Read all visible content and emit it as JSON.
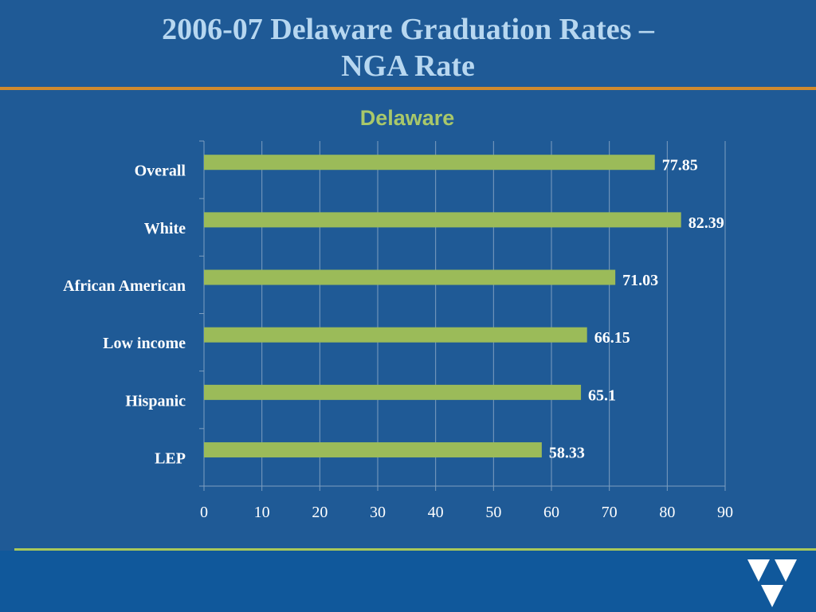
{
  "slide": {
    "title_line1": "2006-07 Delaware Graduation Rates –",
    "title_line2": "NGA Rate"
  },
  "colors": {
    "background": "#1f5a96",
    "bar": "#9bbb59",
    "title": "#b7d7f0",
    "chart_title": "#a9c86a",
    "title_rule": "#d08a2e",
    "footer_band": "#10589b",
    "footer_rule": "#a9c85a",
    "text": "#ffffff",
    "grid": "#7d9ec0"
  },
  "logo": {
    "icon": "stylized-v-triangle-logo"
  },
  "chart_data": {
    "type": "bar",
    "orientation": "horizontal",
    "title": "Delaware",
    "categories": [
      "Overall",
      "White",
      "African American",
      "Low income",
      "Hispanic",
      "LEP"
    ],
    "values": [
      77.85,
      82.39,
      71.03,
      66.15,
      65.1,
      58.33
    ],
    "data_labels": [
      "77.85",
      "82.39",
      "71.03",
      "66.15",
      "65.1",
      "58.33"
    ],
    "xlabel": "",
    "ylabel": "",
    "xlim": [
      0,
      90
    ],
    "ticks": [
      0,
      10,
      20,
      30,
      40,
      50,
      60,
      70,
      80,
      90
    ],
    "grid": true,
    "legend": "none"
  }
}
